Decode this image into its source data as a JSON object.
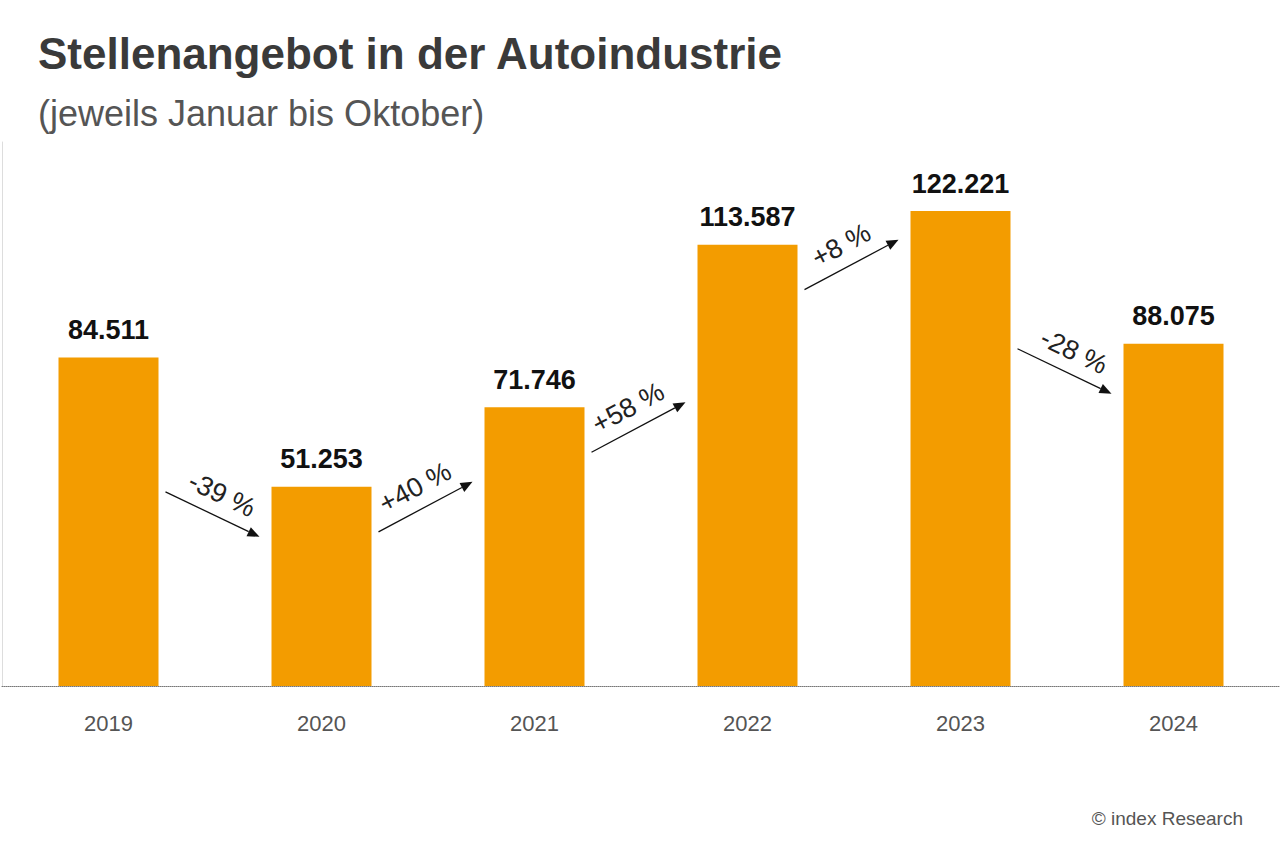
{
  "chart_data": {
    "type": "bar",
    "title": "Stellenangebot in der Autoindustrie",
    "subtitle": "(jeweils Januar bis Oktober)",
    "categories": [
      "2019",
      "2020",
      "2021",
      "2022",
      "2023",
      "2024"
    ],
    "values": [
      84511,
      51253,
      71746,
      113587,
      122221,
      88075
    ],
    "value_labels": [
      "84.511",
      "51.253",
      "71.746",
      "113.587",
      "122.221",
      "88.075"
    ],
    "color": "#f39c00",
    "ylim": [
      0,
      140000
    ],
    "grid": false,
    "data_labels": true,
    "tick_labels": "x",
    "annotations": [
      "-39 %",
      "+40 %",
      "+58 %",
      "+8 %",
      "-28 %"
    ],
    "source": "© index Research"
  }
}
